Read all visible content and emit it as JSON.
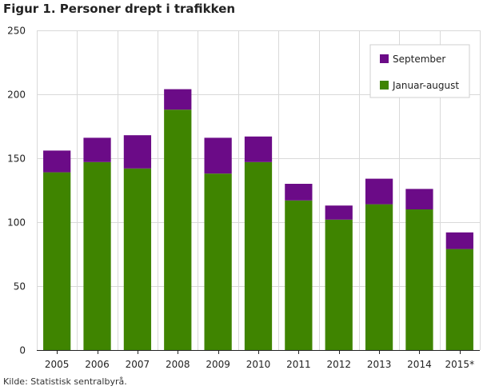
{
  "chart_data": {
    "type": "bar",
    "stacked": true,
    "title": "Figur 1. Personer drept i trafikken",
    "xlabel": "",
    "ylabel": "",
    "categories": [
      "2005",
      "2006",
      "2007",
      "2008",
      "2009",
      "2010",
      "2011",
      "2012",
      "2013",
      "2014",
      "2015*"
    ],
    "series": [
      {
        "name": "Januar-august",
        "color": "#3f8400",
        "values": [
          139,
          147,
          142,
          188,
          138,
          147,
          117,
          102,
          114,
          110,
          79
        ]
      },
      {
        "name": "September",
        "color": "#6b0b87",
        "values": [
          17,
          19,
          26,
          16,
          28,
          20,
          13,
          11,
          20,
          16,
          13
        ]
      }
    ],
    "ylim": [
      0,
      250
    ],
    "yticks": [
      0,
      50,
      100,
      150,
      200,
      250
    ],
    "grid": true,
    "legend_position": "top-right",
    "legend_order": [
      "September",
      "Januar-august"
    ]
  },
  "source": "Kilde: Statistisk sentralbyrå."
}
